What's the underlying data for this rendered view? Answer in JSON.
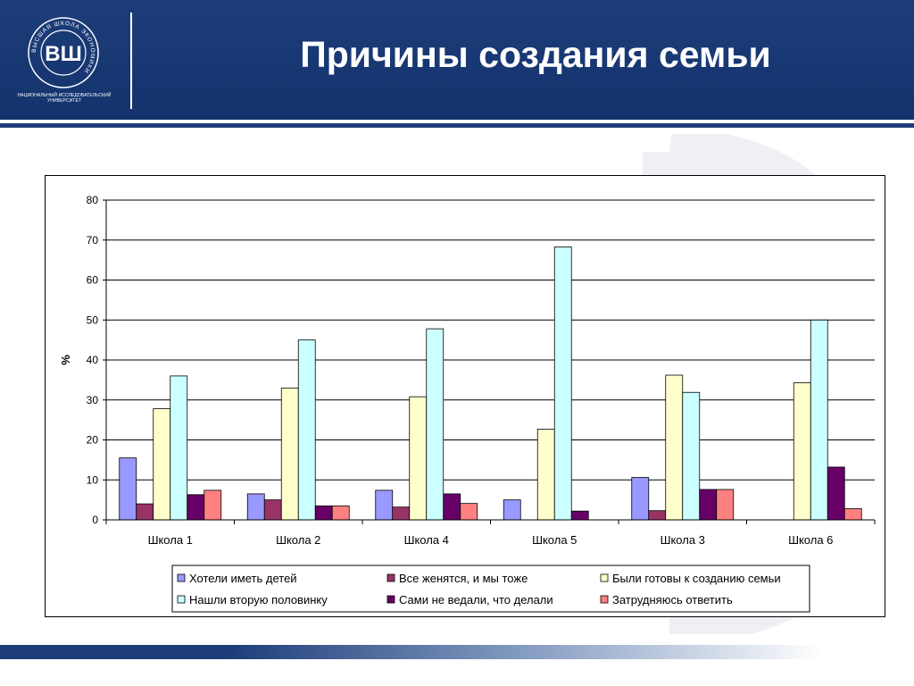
{
  "header": {
    "title": "Причины создания семьи",
    "logo_caption": "НАЦИОНАЛЬНЫЙ ИССЛЕДОВАТЕЛЬСКИЙ УНИВЕРСИТЕТ",
    "logo_ring_text": "ВЫСШАЯ ШКОЛА ЭКОНОМИКИ",
    "logo_monogram": "ВШ"
  },
  "colors": {
    "header_bg": "#1d3d7a"
  },
  "chart_data": {
    "type": "bar",
    "ylabel": "%",
    "xlabel": "",
    "ylim": [
      0,
      80
    ],
    "yticks": [
      0,
      10,
      20,
      30,
      40,
      50,
      60,
      70,
      80
    ],
    "grid": true,
    "legend_position": "bottom",
    "categories": [
      "Школа 1",
      "Школа 2",
      "Школа 4",
      "Школа 5",
      "Школа 3",
      "Школа 6"
    ],
    "series": [
      {
        "name": "Хотели иметь детей",
        "color": "#9999ff",
        "values": [
          15.5,
          6.5,
          7.4,
          5.0,
          10.6,
          0
        ]
      },
      {
        "name": "Все женятся, и мы тоже",
        "color": "#993366",
        "values": [
          4.0,
          5.0,
          3.2,
          0,
          2.3,
          0
        ]
      },
      {
        "name": "Были готовы к созданию семьи",
        "color": "#ffffcc",
        "values": [
          27.8,
          33.0,
          30.8,
          22.7,
          36.2,
          34.3
        ]
      },
      {
        "name": "Нашли вторую половинку",
        "color": "#ccffff",
        "values": [
          36.0,
          45.0,
          47.8,
          68.3,
          31.9,
          50.0
        ]
      },
      {
        "name": "Сами не ведали, что делали",
        "color": "#660066",
        "values": [
          6.3,
          3.5,
          6.5,
          2.2,
          7.6,
          13.2
        ]
      },
      {
        "name": "Затрудняюсь ответить",
        "color": "#ff8080",
        "values": [
          7.4,
          3.5,
          4.1,
          0,
          7.6,
          2.8
        ]
      }
    ]
  }
}
